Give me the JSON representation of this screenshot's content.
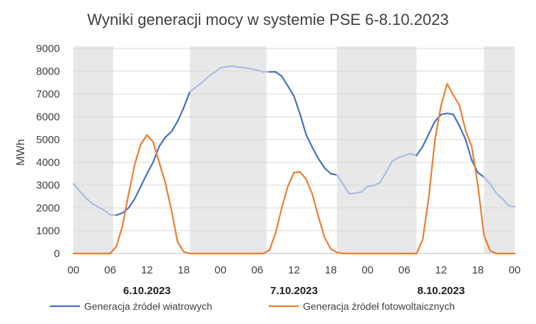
{
  "chart_data": {
    "type": "line",
    "title": "Wyniki generacji mocy w systemie PSE 6-8.10.2023",
    "ylabel": "MWh",
    "xlabel": "",
    "ylim": [
      0,
      9000
    ],
    "yticks": [
      "0",
      "1000",
      "2000",
      "3000",
      "4000",
      "5000",
      "6000",
      "7000",
      "8000",
      "9000"
    ],
    "xlim": [
      0,
      72
    ],
    "xticks": [
      {
        "x": 0,
        "label": "00"
      },
      {
        "x": 6,
        "label": "06"
      },
      {
        "x": 12,
        "label": "12"
      },
      {
        "x": 18,
        "label": "18"
      },
      {
        "x": 24,
        "label": "00"
      },
      {
        "x": 30,
        "label": "06"
      },
      {
        "x": 36,
        "label": "12"
      },
      {
        "x": 42,
        "label": "18"
      },
      {
        "x": 48,
        "label": "00"
      },
      {
        "x": 54,
        "label": "06"
      },
      {
        "x": 60,
        "label": "12"
      },
      {
        "x": 66,
        "label": "18"
      },
      {
        "x": 72,
        "label": "00"
      }
    ],
    "day_labels": [
      {
        "x": 12,
        "label": "6.10.2023"
      },
      {
        "x": 36,
        "label": "7.10.2023"
      },
      {
        "x": 60,
        "label": "8.10.2023"
      }
    ],
    "night_bands": [
      [
        0,
        6.5
      ],
      [
        19,
        31.5
      ],
      [
        43,
        56
      ],
      [
        67,
        72
      ]
    ],
    "band_color": "#e8e8e8",
    "grid": true,
    "legend_position": "bottom",
    "series": [
      {
        "name": "Generacja źródeł wiatrowych",
        "color": "#4472c4",
        "night_color": "#a9bde3",
        "x": [
          0,
          1,
          2,
          3,
          4,
          5,
          6,
          7,
          8,
          9,
          10,
          11,
          12,
          13,
          14,
          15,
          16,
          17,
          18,
          19,
          20,
          21,
          22,
          23,
          24,
          25,
          26,
          27,
          28,
          29,
          30,
          31,
          32,
          33,
          34,
          35,
          36,
          37,
          38,
          39,
          40,
          41,
          42,
          43,
          44,
          45,
          46,
          47,
          48,
          49,
          50,
          51,
          52,
          53,
          54,
          55,
          56,
          57,
          58,
          59,
          60,
          61,
          62,
          63,
          64,
          65,
          66,
          67,
          68,
          69,
          70,
          71,
          72
        ],
        "values": [
          3050,
          2750,
          2450,
          2200,
          2050,
          1900,
          1700,
          1680,
          1780,
          2000,
          2400,
          2950,
          3500,
          4000,
          4700,
          5100,
          5350,
          5800,
          6400,
          7100,
          7300,
          7500,
          7750,
          7950,
          8150,
          8200,
          8220,
          8180,
          8150,
          8100,
          8050,
          7970,
          7970,
          7970,
          7780,
          7350,
          6900,
          6100,
          5200,
          4650,
          4150,
          3750,
          3500,
          3450,
          3050,
          2620,
          2650,
          2700,
          2950,
          2980,
          3100,
          3550,
          4050,
          4200,
          4300,
          4380,
          4300,
          4700,
          5250,
          5800,
          6100,
          6150,
          6100,
          5600,
          5000,
          4100,
          3550,
          3350,
          3050,
          2650,
          2400,
          2100,
          2060
        ]
      },
      {
        "name": "Generacja źródeł fotowoltaicznych",
        "color": "#ed7d31",
        "x": [
          0,
          1,
          2,
          3,
          4,
          5,
          6,
          7,
          8,
          9,
          10,
          11,
          12,
          13,
          14,
          15,
          16,
          17,
          18,
          19,
          20,
          21,
          22,
          23,
          24,
          25,
          26,
          27,
          28,
          29,
          30,
          31,
          32,
          33,
          34,
          35,
          36,
          37,
          38,
          39,
          40,
          41,
          42,
          43,
          44,
          45,
          46,
          47,
          48,
          49,
          50,
          51,
          52,
          53,
          54,
          55,
          56,
          57,
          58,
          59,
          60,
          61,
          62,
          63,
          64,
          65,
          66,
          67,
          68,
          69,
          70,
          71,
          72
        ],
        "values": [
          0,
          0,
          0,
          0,
          0,
          0,
          0,
          300,
          1200,
          2600,
          3900,
          4800,
          5200,
          4900,
          4000,
          3100,
          1900,
          500,
          80,
          0,
          0,
          0,
          0,
          0,
          0,
          0,
          0,
          0,
          0,
          0,
          0,
          0,
          150,
          900,
          2000,
          2950,
          3550,
          3580,
          3250,
          2600,
          1600,
          700,
          200,
          50,
          0,
          0,
          0,
          0,
          0,
          0,
          0,
          0,
          0,
          0,
          0,
          0,
          0,
          600,
          2500,
          5000,
          6500,
          7450,
          6950,
          6500,
          5400,
          4700,
          3000,
          800,
          120,
          0,
          0,
          0,
          0
        ]
      }
    ]
  }
}
